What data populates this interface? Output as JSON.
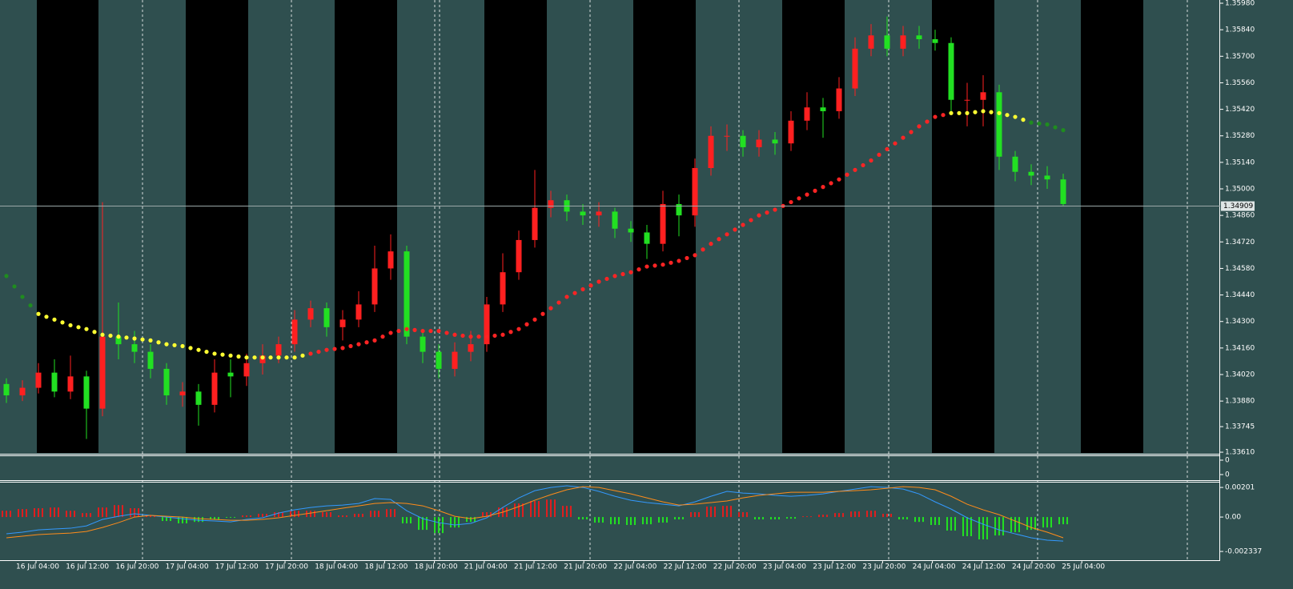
{
  "chart_data": [
    {
      "type": "candlestick",
      "up_color": "#ff2020",
      "down_color": "#22e022",
      "open": [
        1.3397,
        1.3391,
        1.3395,
        1.3403,
        1.3393,
        1.3401,
        1.3384,
        1.3422,
        1.3418,
        1.3414,
        1.3405,
        1.3391,
        1.3393,
        1.3386,
        1.3403,
        1.3401,
        1.3408,
        1.3412,
        1.3418,
        1.3431,
        1.3437,
        1.3427,
        1.3431,
        1.3439,
        1.3458,
        1.3467,
        1.3422,
        1.3414,
        1.3405,
        1.3414,
        1.3418,
        1.3439,
        1.3456,
        1.3473,
        1.349,
        1.3494,
        1.3488,
        1.3486,
        1.3488,
        1.3479,
        1.3477,
        1.3471,
        1.3492,
        1.3486,
        1.3511,
        1.3528,
        1.3528,
        1.3522,
        1.3526,
        1.3524,
        1.3536,
        1.3543,
        1.3541,
        1.3553,
        1.3574,
        1.3581,
        1.3574,
        1.3581,
        1.3579,
        1.3577,
        1.3547,
        1.3547,
        1.3551,
        1.3517,
        1.3509,
        1.3507,
        1.3505
      ],
      "high": [
        1.34,
        1.3399,
        1.3408,
        1.341,
        1.3412,
        1.3404,
        1.3493,
        1.344,
        1.3425,
        1.3418,
        1.3408,
        1.3398,
        1.3397,
        1.341,
        1.341,
        1.3413,
        1.3418,
        1.3422,
        1.3436,
        1.3441,
        1.344,
        1.3436,
        1.3446,
        1.347,
        1.3476,
        1.347,
        1.3426,
        1.3418,
        1.3419,
        1.3425,
        1.3443,
        1.3466,
        1.3478,
        1.351,
        1.3499,
        1.3497,
        1.3492,
        1.3493,
        1.349,
        1.3483,
        1.3481,
        1.3499,
        1.3497,
        1.3516,
        1.3533,
        1.3534,
        1.3531,
        1.3531,
        1.353,
        1.3541,
        1.3551,
        1.3548,
        1.3559,
        1.358,
        1.3587,
        1.3591,
        1.3586,
        1.3586,
        1.3584,
        1.358,
        1.3556,
        1.356,
        1.3555,
        1.352,
        1.3513,
        1.3512,
        1.3508
      ],
      "low": [
        1.3387,
        1.3388,
        1.3392,
        1.339,
        1.3389,
        1.3368,
        1.338,
        1.341,
        1.3408,
        1.34,
        1.3386,
        1.3385,
        1.3375,
        1.3382,
        1.339,
        1.3396,
        1.3402,
        1.3408,
        1.3414,
        1.3427,
        1.3422,
        1.342,
        1.3427,
        1.3435,
        1.3452,
        1.3418,
        1.3408,
        1.34,
        1.3401,
        1.3409,
        1.3414,
        1.3435,
        1.3452,
        1.3469,
        1.3485,
        1.3483,
        1.3481,
        1.348,
        1.3474,
        1.3472,
        1.3463,
        1.3467,
        1.3475,
        1.348,
        1.3507,
        1.352,
        1.3517,
        1.3517,
        1.3518,
        1.352,
        1.3531,
        1.3527,
        1.3537,
        1.3549,
        1.357,
        1.357,
        1.357,
        1.3574,
        1.3573,
        1.354,
        1.3533,
        1.3533,
        1.351,
        1.3504,
        1.3502,
        1.35,
        1.3491
      ],
      "close": [
        1.3391,
        1.3395,
        1.3403,
        1.3393,
        1.3401,
        1.3384,
        1.3422,
        1.3418,
        1.3414,
        1.3405,
        1.3391,
        1.3393,
        1.3386,
        1.3403,
        1.3401,
        1.3408,
        1.3412,
        1.3418,
        1.3431,
        1.3437,
        1.3427,
        1.3431,
        1.3439,
        1.3458,
        1.3467,
        1.3422,
        1.3414,
        1.3405,
        1.3414,
        1.3418,
        1.3439,
        1.3456,
        1.3473,
        1.349,
        1.3494,
        1.3488,
        1.3486,
        1.3488,
        1.3479,
        1.3477,
        1.3471,
        1.3492,
        1.3486,
        1.3511,
        1.3528,
        1.3528,
        1.3522,
        1.3526,
        1.3524,
        1.3536,
        1.3543,
        1.3541,
        1.3553,
        1.3574,
        1.3581,
        1.3574,
        1.3581,
        1.3579,
        1.3577,
        1.3547,
        1.3547,
        1.3551,
        1.3517,
        1.3509,
        1.3507,
        1.3505,
        1.3492
      ],
      "ma": {
        "values": [
          1.3454,
          1.3443,
          1.3434,
          1.3431,
          1.3428,
          1.3426,
          1.3423,
          1.3422,
          1.3421,
          1.342,
          1.3418,
          1.3417,
          1.3415,
          1.3413,
          1.3412,
          1.3411,
          1.3411,
          1.3411,
          1.3411,
          1.3413,
          1.3415,
          1.3416,
          1.3418,
          1.342,
          1.3424,
          1.3426,
          1.3425,
          1.3425,
          1.3423,
          1.3422,
          1.3422,
          1.3423,
          1.3426,
          1.3431,
          1.3437,
          1.3443,
          1.3447,
          1.3451,
          1.3454,
          1.3456,
          1.3459,
          1.346,
          1.3462,
          1.3465,
          1.3471,
          1.3476,
          1.3481,
          1.3486,
          1.3489,
          1.3493,
          1.3497,
          1.3501,
          1.3505,
          1.351,
          1.3515,
          1.3521,
          1.3527,
          1.3533,
          1.3538,
          1.354,
          1.354,
          1.3541,
          1.354,
          1.3538,
          1.3535,
          1.3534,
          1.3531
        ],
        "colors": [
          "#1f8c1f",
          "#1f8c1f",
          "#ffff33",
          "#ffff33",
          "#ffff33",
          "#ffff33",
          "#ffff33",
          "#ffff33",
          "#ffff33",
          "#ffff33",
          "#ffff33",
          "#ffff33",
          "#ffff33",
          "#ffff33",
          "#ffff33",
          "#ffff33",
          "#ffff33",
          "#ffff33",
          "#ffff33",
          "#ff2424",
          "#ff2424",
          "#ff2424",
          "#ff2424",
          "#ff2424",
          "#ff2424",
          "#ff2424",
          "#ff2424",
          "#ff2424",
          "#ff2424",
          "#ff2424",
          "#ff2424",
          "#ff2424",
          "#ff2424",
          "#ff2424",
          "#ff2424",
          "#ff2424",
          "#ff2424",
          "#ff2424",
          "#ff2424",
          "#ff2424",
          "#ff2424",
          "#ff2424",
          "#ff2424",
          "#ff2424",
          "#ff2424",
          "#ff2424",
          "#ff2424",
          "#ff2424",
          "#ff2424",
          "#ff2424",
          "#ff2424",
          "#ff2424",
          "#ff2424",
          "#ff2424",
          "#ff2424",
          "#ff2424",
          "#ff2424",
          "#ff2424",
          "#ff2424",
          "#ffff33",
          "#ffff33",
          "#ffff33",
          "#ffff33",
          "#ffff33",
          "#1f8c1f",
          "#1f8c1f",
          "#1f8c1f"
        ]
      },
      "last_price": 1.34909,
      "ylim": [
        1.33606,
        1.35997
      ],
      "yticks": [
        {
          "value": 1.3598,
          "label": "1.35980"
        },
        {
          "value": 1.3584,
          "label": "1.35840"
        },
        {
          "value": 1.357,
          "label": "1.35700"
        },
        {
          "value": 1.3556,
          "label": "1.35560"
        },
        {
          "value": 1.3542,
          "label": "1.35420"
        },
        {
          "value": 1.3528,
          "label": "1.35280"
        },
        {
          "value": 1.3514,
          "label": "1.35140"
        },
        {
          "value": 1.35,
          "label": "1.35000"
        },
        {
          "value": 1.3486,
          "label": "1.34860"
        },
        {
          "value": 1.3472,
          "label": "1.34720"
        },
        {
          "value": 1.3458,
          "label": "1.34580"
        },
        {
          "value": 1.3444,
          "label": "1.34440"
        },
        {
          "value": 1.343,
          "label": "1.34300"
        },
        {
          "value": 1.3416,
          "label": "1.34160"
        },
        {
          "value": 1.3402,
          "label": "1.34020"
        },
        {
          "value": 1.3388,
          "label": "1.33880"
        },
        1.33745,
        {
          "value": 1.3361,
          "label": "1.33610"
        }
      ],
      "time_labels": [
        "16 Jul 04:00",
        "16 Jul 12:00",
        "16 Jul 20:00",
        "17 Jul 04:00",
        "17 Jul 12:00",
        "17 Jul 20:00",
        "18 Jul 04:00",
        "18 Jul 12:00",
        "18 Jul 20:00",
        "21 Jul 04:00",
        "21 Jul 12:00",
        "21 Jul 20:00",
        "22 Jul 04:00",
        "22 Jul 12:00",
        "22 Jul 20:00",
        "23 Jul 04:00",
        "23 Jul 12:00",
        "23 Jul 20:00",
        "24 Jul 04:00",
        "24 Jul 12:00",
        "24 Jul 20:00",
        "25 Jul 04:00"
      ]
    },
    {
      "type": "empty",
      "yticks": [
        0,
        0
      ]
    },
    {
      "type": "macd",
      "ylim": [
        -0.00293,
        0.00234
      ],
      "yticks": [
        0.00201,
        {
          "value": 0,
          "label": "0.00"
        },
        -0.002337
      ],
      "histogram": {
        "positive_color": "#e01e1e",
        "negative_color": "#22e022",
        "values": [
          0.00043,
          0.00054,
          0.0006,
          0.00065,
          0.00043,
          0.00027,
          0.00065,
          0.00081,
          0.0006,
          0.00011,
          -0.00027,
          -0.00043,
          -0.00033,
          -0.00016,
          -5e-05,
          0.00011,
          0.00022,
          0.00033,
          0.00043,
          0.00043,
          0.00033,
          0.00011,
          0.00022,
          0.00043,
          0.00054,
          -0.00043,
          -0.00087,
          -0.00109,
          -0.00071,
          -0.00033,
          0.00033,
          0.00065,
          0.00092,
          0.00109,
          0.00119,
          0.00076,
          -0.00016,
          -0.00038,
          -0.00049,
          -0.00054,
          -0.00049,
          -0.00038,
          -0.00016,
          0.00033,
          0.00071,
          0.00076,
          0.00033,
          -0.00016,
          -0.00016,
          -0.00011,
          5e-05,
          0.00016,
          0.00027,
          0.00038,
          0.00043,
          0.00022,
          -0.00016,
          -0.00033,
          -0.00054,
          -0.00092,
          -0.0013,
          -0.00152,
          -0.00125,
          -0.00103,
          -0.00087,
          -0.00071,
          -0.00049
        ]
      },
      "series": [
        {
          "color": "#3399ff",
          "values": [
            -0.00114,
            -0.00103,
            -0.00087,
            -0.00081,
            -0.00076,
            -0.0006,
            -0.00016,
            5e-05,
            0.00022,
            0.00011,
            0,
            -0.00011,
            -0.00022,
            -0.00027,
            -0.00033,
            -0.00016,
            -5e-05,
            0.00027,
            0.00049,
            0.00065,
            0.00076,
            0.00081,
            0.00092,
            0.00125,
            0.00119,
            0.00043,
            -0.00011,
            -0.00038,
            -0.00054,
            -0.00043,
            -5e-05,
            0.00065,
            0.0013,
            0.00179,
            0.00201,
            0.00212,
            0.00201,
            0.00174,
            0.00141,
            0.00114,
            0.00098,
            0.00087,
            0.00076,
            0.00103,
            0.00141,
            0.00174,
            0.00163,
            0.00157,
            0.00147,
            0.00141,
            0.00147,
            0.00157,
            0.00174,
            0.0019,
            0.00206,
            0.00201,
            0.0019,
            0.00157,
            0.00103,
            0.00054,
            -5e-05,
            -0.00049,
            -0.00087,
            -0.00114,
            -0.00141,
            -0.00157,
            -0.00163
          ]
        },
        {
          "color": "#ff8c1a",
          "values": [
            -0.00141,
            -0.0013,
            -0.00119,
            -0.00114,
            -0.00109,
            -0.00098,
            -0.00071,
            -0.00038,
            0,
            0.00011,
            5e-05,
            0,
            -0.00011,
            -0.00016,
            -0.00022,
            -0.00022,
            -0.00016,
            -5e-05,
            0.00011,
            0.00027,
            0.00043,
            0.0006,
            0.00076,
            0.00092,
            0.00098,
            0.00092,
            0.00076,
            0.00043,
            5e-05,
            -0.00011,
            5e-05,
            0.00033,
            0.00071,
            0.00114,
            0.00152,
            0.00185,
            0.00206,
            0.00201,
            0.00179,
            0.00157,
            0.0013,
            0.00103,
            0.00081,
            0.00087,
            0.00098,
            0.00109,
            0.0013,
            0.00147,
            0.00157,
            0.00168,
            0.00168,
            0.00168,
            0.00174,
            0.00179,
            0.00185,
            0.00195,
            0.00206,
            0.00201,
            0.00185,
            0.00141,
            0.00087,
            0.00049,
            0.00016,
            -0.00027,
            -0.00071,
            -0.00103,
            -0.00141
          ]
        }
      ]
    }
  ]
}
